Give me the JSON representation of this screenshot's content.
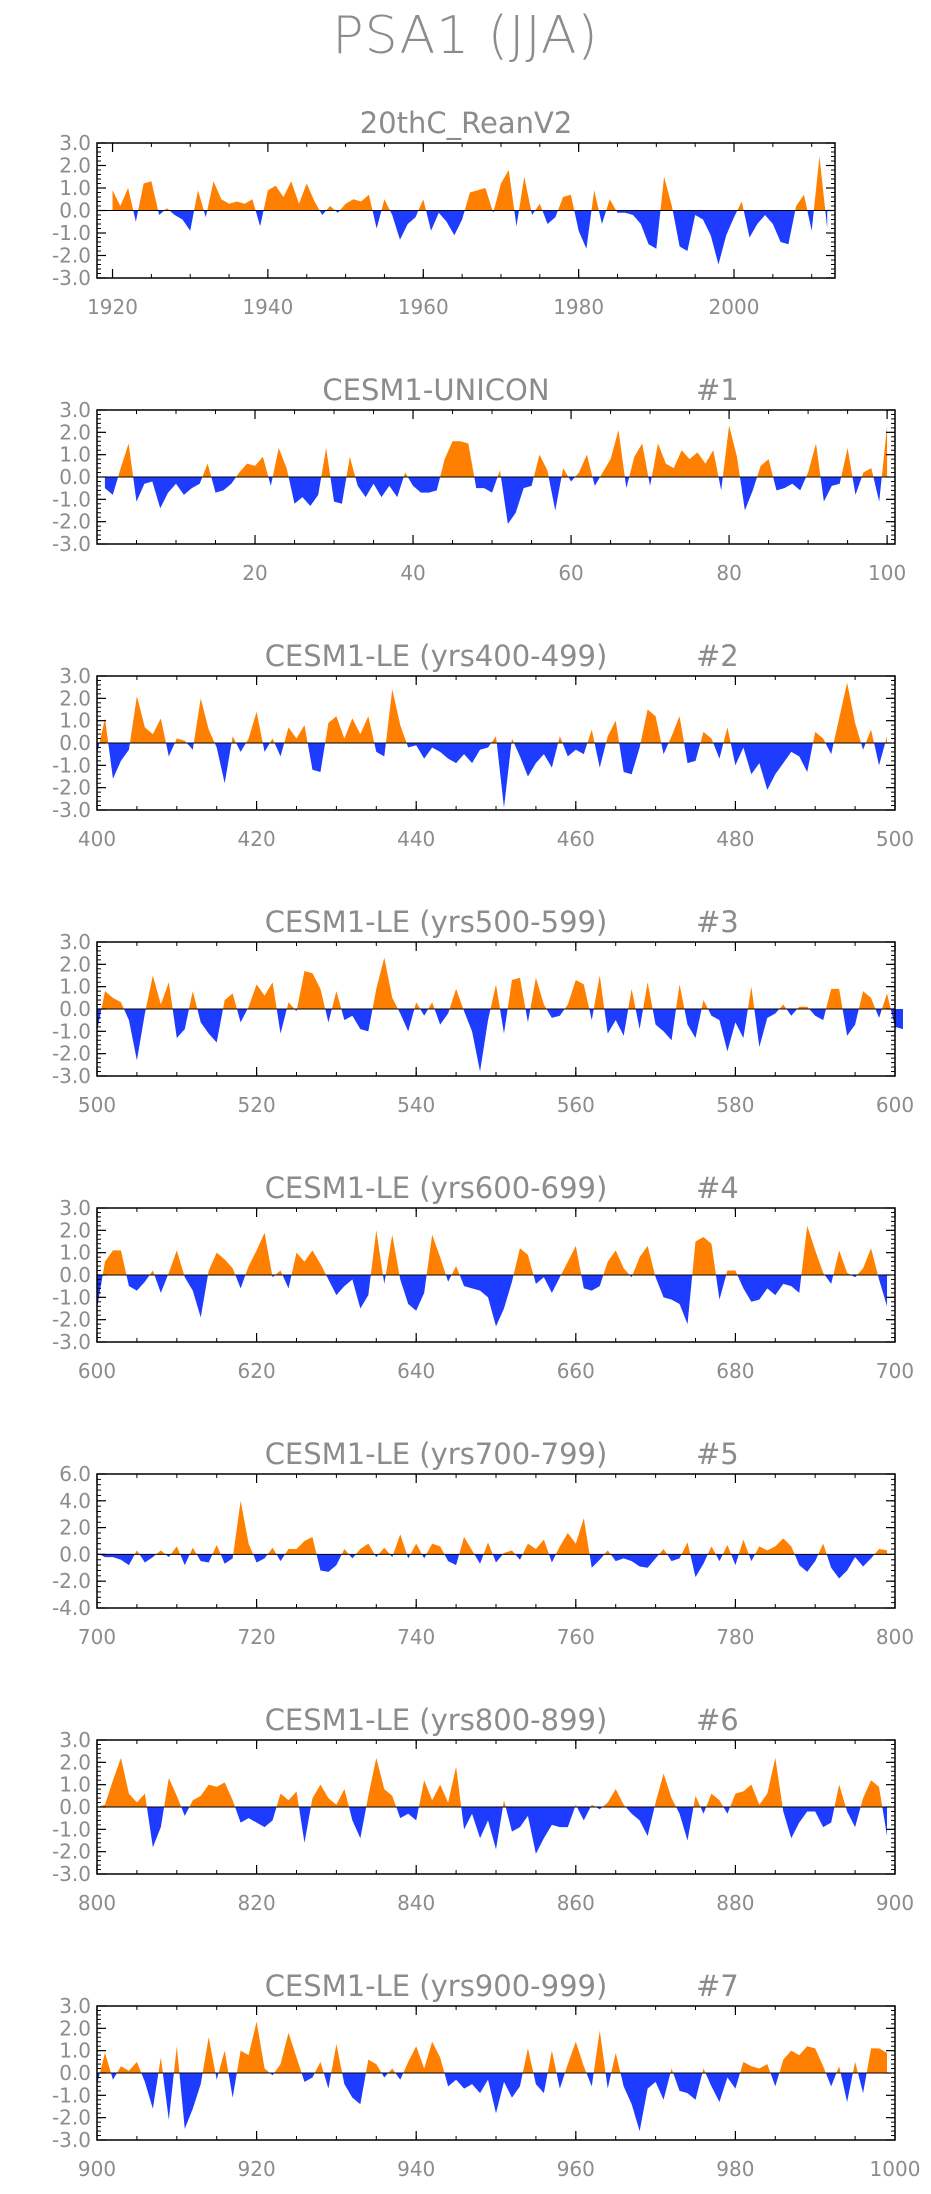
{
  "main_title": "PSA1  (JJA)",
  "colors": {
    "positive": "#ff8000",
    "negative": "#1e3cff",
    "frame": "#000000",
    "text": "#8c8c8c"
  },
  "chart_data": [
    {
      "type": "area",
      "title": "20thC_ReanV2",
      "title_run_tag": "",
      "x_start": 1920,
      "x_end": 2012,
      "xlim": [
        1918,
        2013
      ],
      "xticks": [
        1920,
        1940,
        1960,
        1980,
        2000
      ],
      "xtick_labels": [
        "1920",
        "1940",
        "1960",
        "1980",
        "2000"
      ],
      "ylim": [
        -3,
        3
      ],
      "yticks": [
        3,
        2,
        1,
        0,
        -1,
        -2,
        -3
      ],
      "ytick_labels": [
        "3.0",
        "2.0",
        "1.0",
        "0.0",
        "-1.0",
        "-2.0",
        "-3.0"
      ],
      "values": [
        0.9,
        0.2,
        1.0,
        -0.5,
        1.2,
        1.3,
        -0.2,
        0.1,
        -0.2,
        -0.4,
        -0.9,
        0.9,
        -0.3,
        1.3,
        0.5,
        0.3,
        0.4,
        0.3,
        0.5,
        -0.7,
        0.9,
        1.1,
        0.6,
        1.3,
        0.3,
        1.2,
        0.4,
        -0.2,
        0.2,
        -0.1,
        0.3,
        0.5,
        0.4,
        0.7,
        -0.8,
        0.5,
        -0.2,
        -1.3,
        -0.6,
        -0.3,
        0.5,
        -0.9,
        -0.1,
        -0.5,
        -1.1,
        -0.4,
        0.8,
        0.9,
        1.0,
        -0.1,
        1.2,
        1.8,
        -0.7,
        1.5,
        -0.2,
        0.3,
        -0.6,
        -0.3,
        0.6,
        0.7,
        -0.9,
        -1.7,
        0.9,
        -0.6,
        0.5,
        -0.1,
        -0.1,
        -0.2,
        -0.6,
        -1.5,
        -1.7,
        1.5,
        0.2,
        -1.6,
        -1.8,
        -0.2,
        -0.4,
        -1.1,
        -2.4,
        -1.1,
        -0.3,
        0.4,
        -1.2,
        -0.6,
        -0.2,
        -0.6,
        -1.4,
        -1.5,
        0.2,
        0.7,
        -0.9,
        2.4,
        -0.8
      ]
    },
    {
      "type": "area",
      "title": "CESM1-UNICON",
      "title_run_tag": "#1",
      "x_start": 1,
      "x_end": 100,
      "xlim": [
        0,
        101
      ],
      "xticks": [
        20,
        40,
        60,
        80,
        100
      ],
      "xtick_labels": [
        "20",
        "40",
        "60",
        "80",
        "100"
      ],
      "ylim": [
        -3,
        3
      ],
      "yticks": [
        3,
        2,
        1,
        0,
        -1,
        -2,
        -3
      ],
      "ytick_labels": [
        "3.0",
        "2.0",
        "1.0",
        "0.0",
        "-1.0",
        "-2.0",
        "-3.0"
      ],
      "values": [
        -0.5,
        -0.8,
        0.4,
        1.5,
        -1.1,
        -0.3,
        -0.2,
        -1.4,
        -0.7,
        -0.3,
        -0.8,
        -0.5,
        -0.3,
        0.6,
        -0.7,
        -0.6,
        -0.3,
        0.2,
        0.6,
        0.5,
        0.9,
        -0.4,
        1.3,
        0.4,
        -1.2,
        -0.9,
        -1.3,
        -0.8,
        1.3,
        -1.1,
        -1.2,
        0.9,
        -0.4,
        -0.9,
        -0.3,
        -0.9,
        -0.4,
        -0.9,
        0.2,
        -0.4,
        -0.7,
        -0.7,
        -0.6,
        0.8,
        1.6,
        1.6,
        1.5,
        -0.5,
        -0.5,
        -0.7,
        0.3,
        -2.1,
        -1.6,
        -0.5,
        -0.4,
        1.0,
        0.3,
        -1.5,
        0.4,
        -0.2,
        0.2,
        1.0,
        -0.4,
        0.2,
        0.8,
        2.1,
        -0.5,
        0.9,
        1.5,
        -0.4,
        1.5,
        0.6,
        0.4,
        1.2,
        0.8,
        1.1,
        0.6,
        1.2,
        -0.6,
        2.3,
        0.9,
        -1.5,
        -0.6,
        0.5,
        0.8,
        -0.6,
        -0.5,
        -0.3,
        -0.6,
        0.2,
        1.5,
        -1.1,
        -0.4,
        -0.3,
        1.3,
        -0.8,
        0.2,
        0.4,
        -1.1,
        2.3
      ]
    },
    {
      "type": "area",
      "title": "CESM1-LE (yrs400-499)",
      "title_run_tag": "#2",
      "x_start": 400,
      "x_end": 499,
      "xlim": [
        400,
        500
      ],
      "xticks": [
        400,
        420,
        440,
        460,
        480,
        500
      ],
      "xtick_labels": [
        "400",
        "420",
        "440",
        "460",
        "480",
        "500"
      ],
      "ylim": [
        -3,
        3
      ],
      "yticks": [
        3,
        2,
        1,
        0,
        -1,
        -2,
        -3
      ],
      "ytick_labels": [
        "3.0",
        "2.0",
        "1.0",
        "0.0",
        "-1.0",
        "-2.0",
        "-3.0"
      ],
      "values": [
        -0.5,
        1.1,
        -1.6,
        -0.8,
        -0.3,
        2.1,
        0.7,
        0.4,
        1.1,
        -0.6,
        0.2,
        0.1,
        -0.3,
        2.0,
        0.6,
        -0.2,
        -1.8,
        0.3,
        -0.4,
        0.2,
        1.4,
        -0.4,
        0.2,
        -0.6,
        0.7,
        0.2,
        0.8,
        -1.2,
        -1.3,
        0.9,
        1.2,
        0.2,
        1.1,
        0.4,
        1.2,
        -0.4,
        -0.6,
        2.4,
        0.8,
        -0.2,
        -0.1,
        -0.7,
        -0.2,
        -0.4,
        -0.7,
        -0.9,
        -0.5,
        -0.9,
        -0.3,
        -0.2,
        0.3,
        -2.9,
        0.2,
        -0.6,
        -1.5,
        -0.9,
        -0.5,
        -1.1,
        0.3,
        -0.6,
        -0.3,
        -0.5,
        0.6,
        -1.1,
        0.3,
        1.0,
        -1.3,
        -1.4,
        -0.2,
        1.5,
        1.2,
        -0.5,
        0.3,
        1.2,
        -0.9,
        -0.8,
        0.5,
        0.2,
        -0.7,
        0.7,
        -1.0,
        -0.2,
        -1.4,
        -0.9,
        -2.1,
        -1.4,
        -0.9,
        -0.4,
        -0.6,
        -1.3,
        0.5,
        0.2,
        -0.5,
        1.1,
        2.7,
        0.9,
        -0.3,
        0.6,
        -1.0,
        0.3
      ]
    },
    {
      "type": "area",
      "title": "CESM1-LE (yrs500-599)",
      "title_run_tag": "#3",
      "x_start": 500,
      "x_end": 599,
      "xlim": [
        500,
        600
      ],
      "xticks": [
        500,
        520,
        540,
        560,
        580,
        600
      ],
      "xtick_labels": [
        "500",
        "520",
        "540",
        "560",
        "580",
        "600"
      ],
      "ylim": [
        -3,
        3
      ],
      "yticks": [
        3,
        2,
        1,
        0,
        -1,
        -2,
        -3
      ],
      "ytick_labels": [
        "3.0",
        "2.0",
        "1.0",
        "0.0",
        "-1.0",
        "-2.0",
        "-3.0"
      ],
      "values": [
        -1.0,
        0.8,
        0.5,
        0.3,
        -0.5,
        -2.3,
        -0.2,
        1.5,
        0.2,
        1.2,
        -1.3,
        -0.9,
        0.8,
        -0.6,
        -1.1,
        -1.5,
        0.4,
        0.7,
        -0.6,
        0.1,
        1.1,
        0.6,
        1.2,
        -1.1,
        0.3,
        -0.1,
        1.7,
        1.6,
        0.9,
        -0.6,
        0.8,
        -0.5,
        -0.3,
        -0.9,
        -1.0,
        0.9,
        2.3,
        0.5,
        -0.2,
        -1.0,
        0.3,
        -0.3,
        0.3,
        -0.7,
        -0.2,
        0.9,
        -0.1,
        -1.0,
        -2.8,
        -0.5,
        1.1,
        -1.1,
        1.3,
        1.4,
        -0.6,
        1.4,
        0.2,
        -0.4,
        -0.3,
        0.2,
        1.3,
        1.1,
        -0.5,
        1.5,
        -1.1,
        -0.5,
        -1.2,
        0.9,
        -0.9,
        1.2,
        -0.7,
        -1.0,
        -1.4,
        1.1,
        -0.7,
        -1.3,
        0.4,
        -0.3,
        -0.5,
        -1.9,
        -0.6,
        -1.3,
        1.0,
        -1.7,
        -0.4,
        -0.2,
        0.2,
        -0.3,
        0.1,
        0.1,
        -0.3,
        -0.5,
        0.9,
        0.9,
        -1.2,
        -0.7,
        0.8,
        0.5,
        -0.4,
        0.7,
        -0.8,
        -0.9
      ]
    },
    {
      "type": "area",
      "title": "CESM1-LE (yrs600-699)",
      "title_run_tag": "#4",
      "x_start": 600,
      "x_end": 699,
      "xlim": [
        600,
        700
      ],
      "xticks": [
        600,
        620,
        640,
        660,
        680,
        700
      ],
      "xtick_labels": [
        "600",
        "620",
        "640",
        "660",
        "680",
        "700"
      ],
      "ylim": [
        -3,
        3
      ],
      "yticks": [
        3,
        2,
        1,
        0,
        -1,
        -2,
        -3
      ],
      "ytick_labels": [
        "3.0",
        "2.0",
        "1.0",
        "0.0",
        "-1.0",
        "-2.0",
        "-3.0"
      ],
      "values": [
        -1.5,
        0.6,
        1.1,
        1.1,
        -0.5,
        -0.7,
        -0.3,
        0.2,
        -0.8,
        0.1,
        1.1,
        -0.1,
        -0.7,
        -1.9,
        0.2,
        1.0,
        0.7,
        0.3,
        -0.6,
        0.4,
        1.1,
        1.9,
        -0.1,
        0.2,
        -0.6,
        1.0,
        0.6,
        1.1,
        0.5,
        -0.2,
        -0.9,
        -0.5,
        -0.2,
        -1.5,
        -0.9,
        2.0,
        -0.4,
        1.8,
        -0.2,
        -1.3,
        -1.6,
        -0.8,
        1.8,
        0.8,
        -0.3,
        0.4,
        -0.5,
        -0.6,
        -0.7,
        -1.0,
        -2.3,
        -1.5,
        -0.3,
        1.2,
        0.9,
        -0.4,
        -0.1,
        -0.8,
        -0.1,
        0.6,
        1.3,
        -0.6,
        -0.7,
        -0.5,
        0.6,
        1.1,
        0.3,
        -0.1,
        0.8,
        1.3,
        -0.1,
        -1.0,
        -1.1,
        -1.3,
        -2.2,
        1.5,
        1.7,
        1.4,
        -1.1,
        0.2,
        0.2,
        -0.6,
        -1.2,
        -1.1,
        -0.6,
        -0.9,
        -0.4,
        -0.5,
        -0.8,
        2.2,
        1.1,
        0.1,
        -0.4,
        1.1,
        0.1,
        -0.1,
        0.3,
        1.2,
        -0.2,
        -1.4
      ]
    },
    {
      "type": "area",
      "title": "CESM1-LE (yrs700-799)",
      "title_run_tag": "#5",
      "x_start": 700,
      "x_end": 799,
      "xlim": [
        700,
        800
      ],
      "xticks": [
        700,
        720,
        740,
        760,
        780,
        800
      ],
      "xtick_labels": [
        "700",
        "720",
        "740",
        "760",
        "780",
        "800"
      ],
      "ylim": [
        -4,
        6
      ],
      "yticks": [
        6,
        4,
        2,
        0,
        -2,
        -4
      ],
      "ytick_labels": [
        "6.0",
        "4.0",
        "2.0",
        "0.0",
        "-2.0",
        "-4.0"
      ],
      "values": [
        0.1,
        -0.2,
        -0.2,
        -0.4,
        -0.8,
        0.3,
        -0.6,
        -0.2,
        0.3,
        -0.2,
        0.6,
        -0.8,
        0.5,
        -0.5,
        -0.6,
        0.7,
        -0.7,
        -0.3,
        4.0,
        0.8,
        -0.6,
        -0.3,
        0.5,
        -0.5,
        0.4,
        0.4,
        1.0,
        1.3,
        -1.2,
        -1.3,
        -0.8,
        0.4,
        -0.3,
        0.4,
        0.8,
        -0.2,
        0.5,
        -0.2,
        1.5,
        -0.3,
        0.8,
        -0.3,
        0.8,
        0.6,
        -0.5,
        -0.8,
        1.3,
        0.3,
        -0.7,
        0.9,
        -0.6,
        0.1,
        0.3,
        -0.4,
        0.8,
        0.4,
        1.1,
        -0.6,
        0.6,
        1.6,
        0.8,
        2.7,
        -1.0,
        -0.4,
        0.3,
        -0.5,
        -0.3,
        -0.5,
        -0.9,
        -1.0,
        -0.3,
        0.4,
        -0.5,
        -0.3,
        0.9,
        -1.7,
        -0.7,
        0.6,
        -0.5,
        0.7,
        -0.8,
        1.1,
        -0.5,
        0.6,
        0.3,
        0.6,
        1.2,
        0.6,
        -0.8,
        -1.3,
        -0.5,
        0.8,
        -1.0,
        -1.8,
        -1.2,
        -0.2,
        -0.9,
        -0.3,
        0.4,
        0.3
      ]
    },
    {
      "type": "area",
      "title": "CESM1-LE (yrs800-899)",
      "title_run_tag": "#6",
      "x_start": 800,
      "x_end": 899,
      "xlim": [
        800,
        900
      ],
      "xticks": [
        800,
        820,
        840,
        860,
        880,
        900
      ],
      "xtick_labels": [
        "800",
        "820",
        "840",
        "860",
        "880",
        "900"
      ],
      "ylim": [
        -3,
        3
      ],
      "yticks": [
        3,
        2,
        1,
        0,
        -1,
        -2,
        -3
      ],
      "ytick_labels": [
        "3.0",
        "2.0",
        "1.0",
        "0.0",
        "-1.0",
        "-2.0",
        "-3.0"
      ],
      "values": [
        0.0,
        0.1,
        1.2,
        2.2,
        0.6,
        0.2,
        0.6,
        -1.8,
        -0.9,
        1.3,
        0.5,
        -0.4,
        0.3,
        0.5,
        1.0,
        0.9,
        1.1,
        0.3,
        -0.7,
        -0.5,
        -0.7,
        -0.9,
        -0.6,
        0.6,
        0.3,
        0.7,
        -1.6,
        0.4,
        1.0,
        0.4,
        0.1,
        0.8,
        -0.6,
        -1.4,
        0.5,
        2.2,
        0.8,
        0.5,
        -0.5,
        -0.3,
        -0.6,
        1.2,
        0.3,
        1.0,
        0.2,
        1.8,
        -1.0,
        -0.3,
        -1.4,
        -0.6,
        -1.9,
        0.3,
        -1.1,
        -0.9,
        -0.4,
        -2.1,
        -1.4,
        -0.8,
        -0.9,
        -0.9,
        0.1,
        -0.6,
        0.1,
        -0.1,
        0.2,
        0.8,
        0.1,
        -0.3,
        -0.6,
        -1.3,
        0.2,
        1.5,
        0.4,
        -0.3,
        -1.5,
        0.5,
        -0.3,
        0.6,
        0.3,
        -0.3,
        0.6,
        0.7,
        1.0,
        0.1,
        0.6,
        2.2,
        -0.2,
        -1.4,
        -0.7,
        -0.2,
        -0.2,
        -0.9,
        -0.7,
        1.0,
        -0.2,
        -0.9,
        0.4,
        1.2,
        0.9,
        -1.3
      ]
    },
    {
      "type": "area",
      "title": "CESM1-LE (yrs900-999)",
      "title_run_tag": "#7",
      "x_start": 900,
      "x_end": 999,
      "xlim": [
        900,
        1000
      ],
      "xticks": [
        900,
        920,
        940,
        960,
        980,
        1000
      ],
      "xtick_labels": [
        "900",
        "920",
        "940",
        "960",
        "980",
        "1000"
      ],
      "ylim": [
        -3,
        3
      ],
      "yticks": [
        3,
        2,
        1,
        0,
        -1,
        -2,
        -3
      ],
      "ytick_labels": [
        "3.0",
        "2.0",
        "1.0",
        "0.0",
        "-1.0",
        "-2.0",
        "-3.0"
      ],
      "values": [
        -0.5,
        0.9,
        -0.3,
        0.3,
        0.1,
        0.5,
        -0.4,
        -1.6,
        0.7,
        -2.1,
        1.2,
        -2.5,
        -1.6,
        -0.5,
        1.6,
        -0.3,
        1.0,
        -1.1,
        1.0,
        0.8,
        2.3,
        0.2,
        -0.1,
        0.4,
        1.8,
        0.7,
        -0.4,
        -0.2,
        0.5,
        -0.7,
        1.3,
        -0.5,
        -1.1,
        -1.4,
        0.6,
        0.4,
        -0.2,
        0.2,
        -0.3,
        0.5,
        1.2,
        0.2,
        1.4,
        0.7,
        -0.6,
        -0.3,
        -0.7,
        -0.5,
        -0.9,
        -0.3,
        -1.8,
        -0.4,
        -1.1,
        -0.6,
        1.1,
        -0.5,
        -0.9,
        1.0,
        -0.7,
        0.4,
        1.4,
        0.3,
        -0.6,
        1.9,
        -0.7,
        0.9,
        -0.6,
        -1.4,
        -2.6,
        -0.7,
        -0.4,
        -1.2,
        0.2,
        -0.8,
        -0.9,
        -1.2,
        0.2,
        -0.6,
        -1.3,
        -0.2,
        -0.7,
        0.5,
        0.3,
        0.2,
        0.4,
        -0.6,
        0.6,
        1.0,
        0.8,
        1.2,
        1.1,
        0.3,
        -0.6,
        0.3,
        -1.3,
        0.5,
        -0.9,
        1.1,
        1.1,
        0.9
      ]
    }
  ]
}
